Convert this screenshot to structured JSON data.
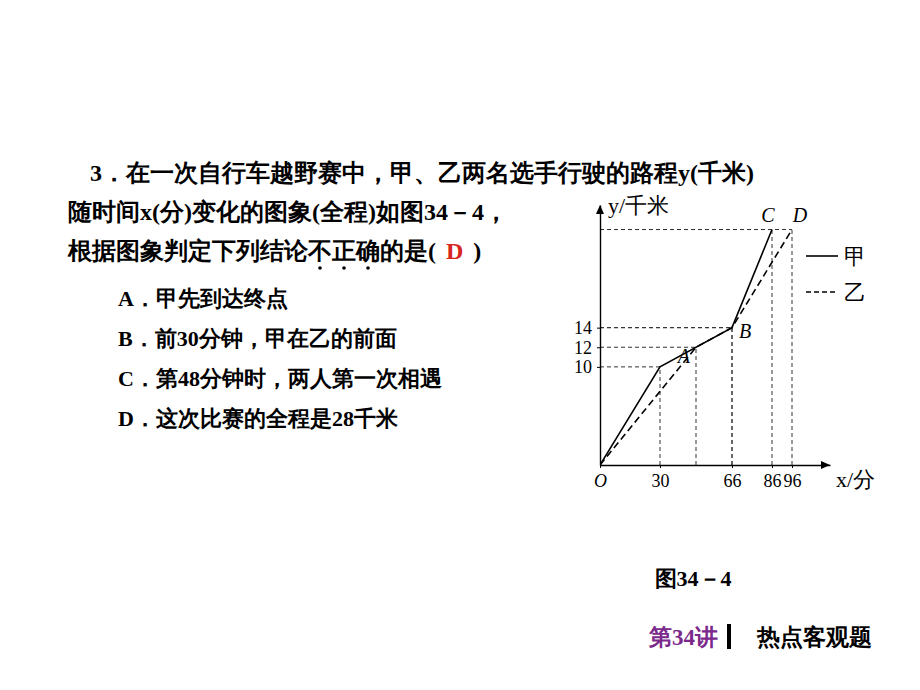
{
  "question": {
    "lines": [
      "3．在一次自行车越野赛中，甲、乙两名选手行驶的路程y(千米)",
      "随时间x(分)变化的图象(全程)如图34－4，"
    ],
    "last_before": "根据图象判定下列结论",
    "emphasis": "不正确",
    "last_after": "的是(",
    "answer": "D",
    "closing": ")"
  },
  "options": [
    "A．甲先到达终点",
    "B．前30分钟，甲在乙的前面",
    "C．第48分钟时，两人第一次相遇",
    "D．这次比赛的全程是28千米"
  ],
  "caption": "图34－4",
  "footer": {
    "lesson": "第34讲",
    "topic": "热点客观题"
  },
  "chart_data": {
    "type": "line",
    "x_label": "x/分",
    "y_label": "y/千米",
    "xlim": [
      0,
      115
    ],
    "ylim": [
      0,
      26.5
    ],
    "xticks": [
      {
        "value": 0,
        "label": "O"
      },
      30,
      66,
      86,
      96
    ],
    "yticks": [
      10,
      12,
      14
    ],
    "legend": "right",
    "series": [
      {
        "name": "甲",
        "color": "#000000",
        "line_style": "solid",
        "x": [
          0,
          30,
          66,
          86
        ],
        "values": [
          0,
          10,
          14,
          24
        ]
      },
      {
        "name": "乙",
        "color": "#000000",
        "line_style": "dashed",
        "x": [
          0,
          48,
          66,
          96
        ],
        "values": [
          0,
          12,
          14,
          24
        ]
      }
    ],
    "annotations": [
      {
        "text": "A",
        "x": 48,
        "y": 12
      },
      {
        "text": "B",
        "x": 66,
        "y": 14
      },
      {
        "text": "C",
        "x": 86,
        "y": 24
      },
      {
        "text": "D",
        "x": 96,
        "y": 24
      }
    ]
  }
}
